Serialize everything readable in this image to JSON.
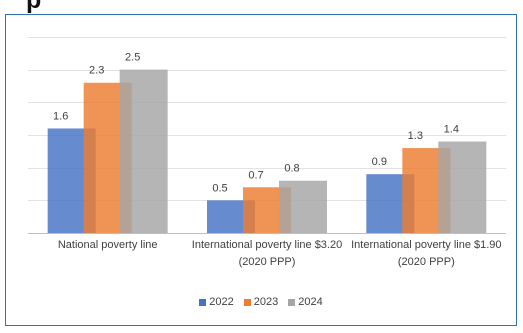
{
  "page": {
    "heading_fragment": "p"
  },
  "chart_data": {
    "type": "bar",
    "title": "",
    "xlabel": "",
    "ylabel": "",
    "ylim": [
      0,
      3
    ],
    "grid": true,
    "legend_position": "bottom",
    "categories": [
      [
        "National poverty line"
      ],
      [
        "International poverty line $3.20",
        "(2020 PPP)"
      ],
      [
        "International poverty line $1.90",
        "(2020 PPP)"
      ]
    ],
    "series": [
      {
        "name": "2022",
        "color": "#4472c4",
        "values": [
          1.6,
          0.5,
          0.9
        ],
        "labels": [
          "1.6",
          "0.5",
          "0.9"
        ]
      },
      {
        "name": "2023",
        "color": "#ed7d31",
        "values": [
          2.3,
          0.7,
          1.3
        ],
        "labels": [
          "2.3",
          "0.7",
          "1.3"
        ]
      },
      {
        "name": "2024",
        "color": "#a5a5a5",
        "values": [
          2.5,
          0.8,
          1.4
        ],
        "labels": [
          "2.5",
          "0.8",
          "1.4"
        ]
      }
    ]
  }
}
